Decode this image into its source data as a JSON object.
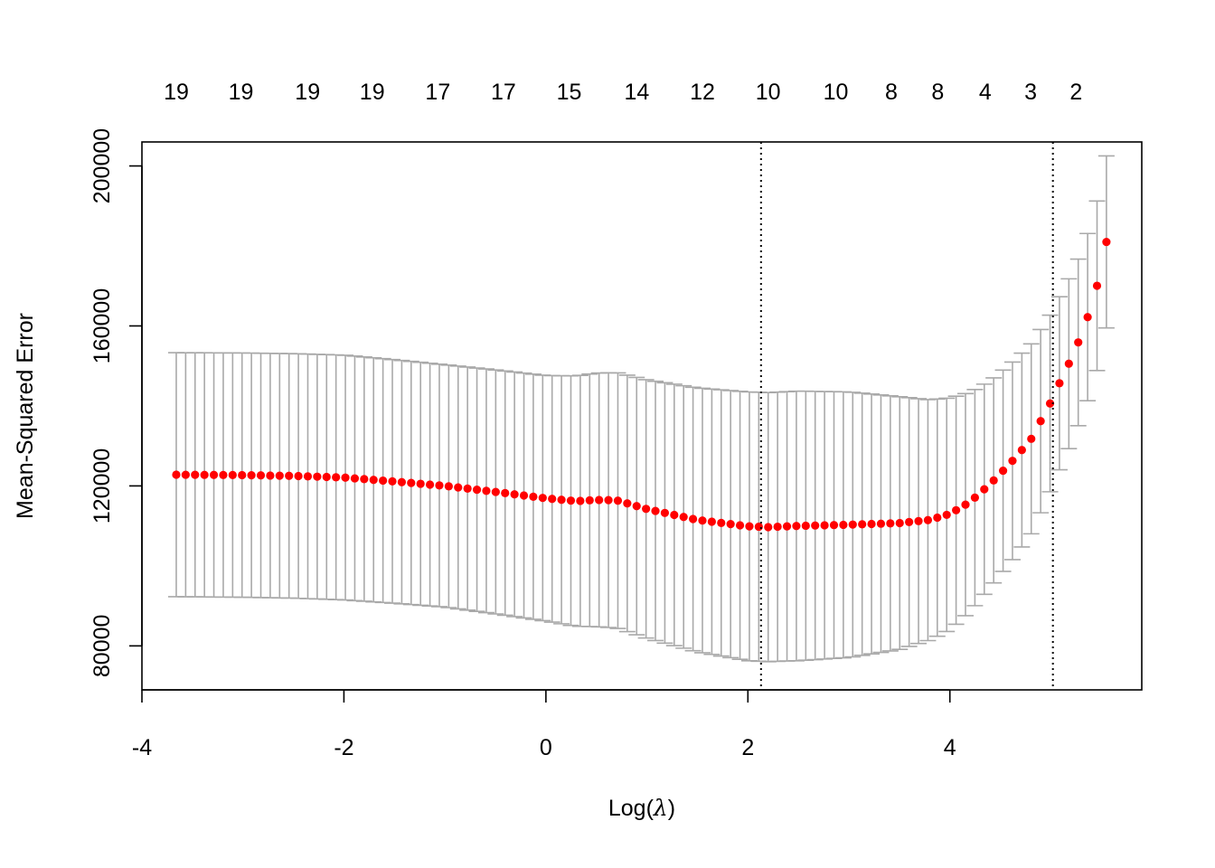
{
  "chart_data": {
    "type": "scatter",
    "xlabel_prefix": "Log(",
    "xlabel_symbol": "λ",
    "xlabel_suffix": ")",
    "ylabel": "Mean-Squared Error",
    "xlim": [
      -4,
      5.9
    ],
    "ylim": [
      69000,
      206000
    ],
    "x_ticks": [
      -4,
      -2,
      0,
      2,
      4
    ],
    "x_tick_labels": [
      "-4",
      "-2",
      "0",
      "2",
      "4"
    ],
    "y_ticks": [
      80000,
      120000,
      160000,
      200000
    ],
    "y_tick_labels": [
      "80000",
      "120000",
      "160000",
      "200000"
    ],
    "top_axis": {
      "x": [
        -3.66,
        -3.02,
        -2.36,
        -1.72,
        -1.07,
        -0.42,
        0.23,
        0.9,
        1.55,
        2.2,
        2.87,
        3.42,
        3.88,
        4.35,
        4.8,
        5.25
      ],
      "labels": [
        "19",
        "19",
        "19",
        "19",
        "17",
        "17",
        "15",
        "14",
        "12",
        "10",
        "10",
        "8",
        "8",
        "4",
        "3",
        "2"
      ]
    },
    "vlines": [
      2.13,
      5.02
    ],
    "log_lambda_range": [
      -3.66,
      5.55
    ],
    "mse_knots": [
      [
        -3.66,
        122800
      ],
      [
        -3.0,
        122700
      ],
      [
        -2.5,
        122500
      ],
      [
        -2.0,
        122100
      ],
      [
        -1.5,
        121100
      ],
      [
        -1.0,
        120000
      ],
      [
        -0.5,
        118500
      ],
      [
        0.0,
        116900
      ],
      [
        0.3,
        116200
      ],
      [
        0.5,
        116500
      ],
      [
        0.7,
        116400
      ],
      [
        1.0,
        114200
      ],
      [
        1.5,
        111500
      ],
      [
        2.0,
        109900
      ],
      [
        2.2,
        109700
      ],
      [
        2.5,
        110000
      ],
      [
        3.0,
        110300
      ],
      [
        3.5,
        110700
      ],
      [
        3.8,
        111500
      ],
      [
        4.0,
        113000
      ],
      [
        4.2,
        116000
      ],
      [
        4.4,
        120500
      ],
      [
        4.6,
        125700
      ],
      [
        4.8,
        131500
      ],
      [
        5.0,
        141000
      ],
      [
        5.1,
        146500
      ],
      [
        5.2,
        151700
      ],
      [
        5.3,
        157600
      ],
      [
        5.4,
        164800
      ],
      [
        5.5,
        174000
      ],
      [
        5.55,
        181000
      ]
    ],
    "se_knots": [
      [
        -3.66,
        30500
      ],
      [
        -2.0,
        30600
      ],
      [
        -1.0,
        30300
      ],
      [
        0.0,
        30700
      ],
      [
        0.5,
        31700
      ],
      [
        1.0,
        32300
      ],
      [
        1.5,
        33000
      ],
      [
        2.0,
        33600
      ],
      [
        2.5,
        33700
      ],
      [
        3.0,
        33200
      ],
      [
        3.5,
        31600
      ],
      [
        4.0,
        29000
      ],
      [
        4.4,
        25800
      ],
      [
        4.8,
        23800
      ],
      [
        5.0,
        22000
      ],
      [
        5.3,
        20700
      ],
      [
        5.55,
        21500
      ]
    ],
    "colors": {
      "points": "#ff0000",
      "error_bars": "#a9a9a9",
      "vlines": "#000000",
      "axes": "#000000"
    }
  }
}
